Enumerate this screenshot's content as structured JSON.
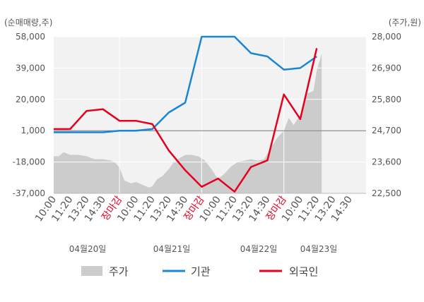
{
  "chart_data": {
    "type": "line",
    "left_axis_unit": "(순매매량,주)",
    "right_axis_unit": "(주가,원)",
    "left_ticks": [
      "58,000",
      "39,000",
      "20,000",
      "1,000",
      "-18,000",
      "-37,000"
    ],
    "left_tick_values": [
      58000,
      39000,
      20000,
      1000,
      -18000,
      -37000
    ],
    "right_ticks": [
      "28,000",
      "26,900",
      "25,800",
      "24,700",
      "23,600",
      "22,500"
    ],
    "right_tick_values": [
      28000,
      26900,
      25800,
      24700,
      23600,
      22500
    ],
    "left_ylim": [
      -37000,
      58000
    ],
    "right_ylim": [
      22500,
      28000
    ],
    "x_ticks": [
      "10:00",
      "11:20",
      "13:20",
      "14:30",
      "장마감",
      "10:00",
      "11:20",
      "13:20",
      "14:30",
      "장마감",
      "10:00",
      "11:20",
      "13:20",
      "14:30",
      "장마감",
      "10:00",
      "11:20",
      "13:20",
      "14:30"
    ],
    "x_tick_is_close": [
      false,
      false,
      false,
      false,
      true,
      false,
      false,
      false,
      false,
      true,
      false,
      false,
      false,
      false,
      true,
      false,
      false,
      false,
      false
    ],
    "dates": [
      "04월20일",
      "04월21일",
      "04월22일",
      "04월23일"
    ],
    "zero_reference": 1000,
    "series": [
      {
        "name": "기관",
        "axis": "left",
        "color": "#1a86d6",
        "points": [
          [
            0,
            0
          ],
          [
            1,
            0
          ],
          [
            2,
            0
          ],
          [
            3,
            0
          ],
          [
            4,
            1000
          ],
          [
            5,
            1000
          ],
          [
            6,
            2000
          ],
          [
            7,
            12000
          ],
          [
            8,
            18000
          ],
          [
            9,
            58000
          ],
          [
            10,
            58000
          ],
          [
            11,
            58000
          ],
          [
            12,
            48000
          ],
          [
            13,
            46000
          ],
          [
            14,
            38000
          ],
          [
            15,
            39000
          ],
          [
            16,
            46000
          ]
        ]
      },
      {
        "name": "외국인",
        "axis": "left",
        "color": "#e6001f",
        "points": [
          [
            0,
            2000
          ],
          [
            1,
            2000
          ],
          [
            2,
            13000
          ],
          [
            3,
            14000
          ],
          [
            4,
            7000
          ],
          [
            5,
            7000
          ],
          [
            6,
            5000
          ],
          [
            7,
            -11000
          ],
          [
            8,
            -23000
          ],
          [
            9,
            -33000
          ],
          [
            10,
            -28000
          ],
          [
            11,
            -36000
          ],
          [
            12,
            -21000
          ],
          [
            13,
            -17000
          ],
          [
            14,
            23000
          ],
          [
            15,
            8000
          ],
          [
            16,
            51000
          ]
        ]
      },
      {
        "name": "주가",
        "axis": "right",
        "color": "#cccccc",
        "type": "area",
        "points": [
          [
            0,
            23800
          ],
          [
            0.3,
            23800
          ],
          [
            0.6,
            23950
          ],
          [
            1,
            23850
          ],
          [
            1.5,
            23850
          ],
          [
            2,
            23800
          ],
          [
            2.5,
            23700
          ],
          [
            3,
            23700
          ],
          [
            3.5,
            23650
          ],
          [
            3.8,
            23550
          ],
          [
            4,
            23400
          ],
          [
            4.3,
            22950
          ],
          [
            4.7,
            22850
          ],
          [
            5,
            22900
          ],
          [
            5.4,
            22800
          ],
          [
            5.8,
            22700
          ],
          [
            6,
            22750
          ],
          [
            6.3,
            23000
          ],
          [
            6.6,
            23100
          ],
          [
            7,
            23350
          ],
          [
            7.3,
            23600
          ],
          [
            7.7,
            23750
          ],
          [
            8,
            23850
          ],
          [
            8.4,
            23850
          ],
          [
            8.8,
            23800
          ],
          [
            9.2,
            23650
          ],
          [
            9.6,
            23350
          ],
          [
            10,
            23000
          ],
          [
            10.4,
            23200
          ],
          [
            10.8,
            23450
          ],
          [
            11.2,
            23600
          ],
          [
            11.6,
            23650
          ],
          [
            12,
            23700
          ],
          [
            12.4,
            23650
          ],
          [
            12.8,
            23700
          ],
          [
            13.2,
            24100
          ],
          [
            13.6,
            24450
          ],
          [
            14,
            24700
          ],
          [
            14.3,
            25150
          ],
          [
            14.6,
            24900
          ],
          [
            15,
            25250
          ],
          [
            15.4,
            26000
          ],
          [
            15.8,
            26100
          ],
          [
            16,
            26800
          ],
          [
            16.3,
            27400
          ]
        ]
      }
    ]
  },
  "legend": {
    "items": [
      {
        "label": "주가",
        "color": "#cccccc",
        "kind": "box"
      },
      {
        "label": "기관",
        "color": "#1a86d6",
        "kind": "line"
      },
      {
        "label": "외국인",
        "color": "#e6001f",
        "kind": "line"
      }
    ]
  }
}
